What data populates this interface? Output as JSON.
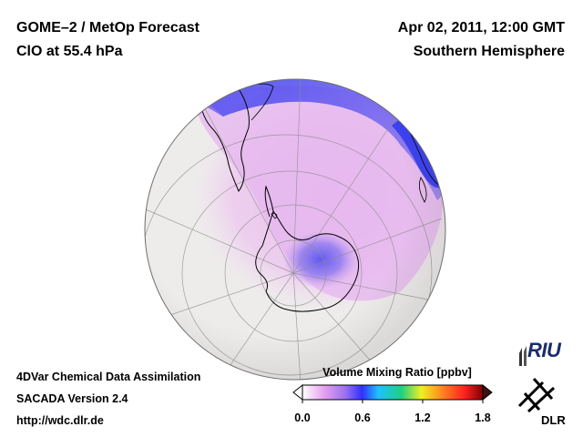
{
  "header": {
    "product": "GOME–2 / MetOp Forecast",
    "species": "ClO at 55.4 hPa",
    "datetime": "Apr 02, 2011, 12:00 GMT",
    "region": "Southern Hemisphere"
  },
  "footer": {
    "line1": "4DVar Chemical Data Assimilation",
    "line2": "SACADA Version 2.4",
    "line3": "http://wdc.dlr.de"
  },
  "legend": {
    "title": "Volume Mixing Ratio [ppbv]",
    "ticks": [
      "0.0",
      "0.6",
      "1.2",
      "1.8"
    ],
    "colors": [
      "#ffffff",
      "#e6a0f0",
      "#b070f0",
      "#3030ff",
      "#20c0ff",
      "#20d080",
      "#f0f020",
      "#ff8020",
      "#ff2020",
      "#800000"
    ]
  },
  "logos": {
    "riu": "RIU",
    "dlr": "DLR"
  },
  "map": {
    "projection": "orthographic south polar",
    "ocean_color": "#eeeceb",
    "land_outline_color": "#000000"
  }
}
